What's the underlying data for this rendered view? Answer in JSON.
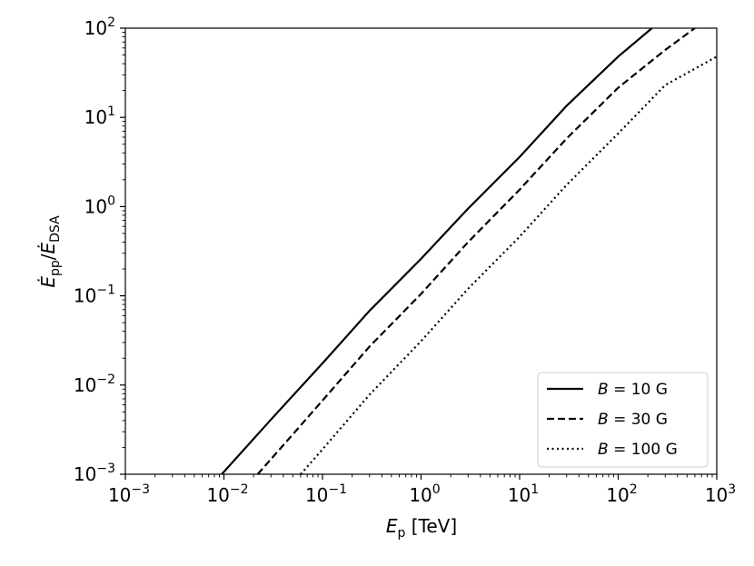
{
  "chart_data": {
    "type": "line",
    "x_scale": "log",
    "y_scale": "log",
    "xlim": [
      0.001,
      1000
    ],
    "ylim": [
      0.001,
      100
    ],
    "grid": false,
    "legend_position": "bottom-right",
    "x_ticks": [
      {
        "value": 0.001,
        "base": "10",
        "exp": "−3"
      },
      {
        "value": 0.01,
        "base": "10",
        "exp": "−2"
      },
      {
        "value": 0.1,
        "base": "10",
        "exp": "−1"
      },
      {
        "value": 1,
        "base": "10",
        "exp": "0"
      },
      {
        "value": 10,
        "base": "10",
        "exp": "1"
      },
      {
        "value": 100,
        "base": "10",
        "exp": "2"
      },
      {
        "value": 1000,
        "base": "10",
        "exp": "3"
      }
    ],
    "y_ticks": [
      {
        "value": 0.001,
        "base": "10",
        "exp": "−3"
      },
      {
        "value": 0.01,
        "base": "10",
        "exp": "−2"
      },
      {
        "value": 0.1,
        "base": "10",
        "exp": "−1"
      },
      {
        "value": 1,
        "base": "10",
        "exp": "0"
      },
      {
        "value": 10,
        "base": "10",
        "exp": "1"
      },
      {
        "value": 100,
        "base": "10",
        "exp": "2"
      }
    ],
    "xlabel": {
      "main": "E",
      "sub": "p",
      "unit": " [TeV]"
    },
    "ylabel": {
      "num_main": "Ė",
      "num_sub": "pp",
      "slash": "/",
      "den_main": "Ė",
      "den_sub": "DSA"
    },
    "series": [
      {
        "name": "B = 10 G",
        "label_var": "B",
        "label_rest": " = 10 G",
        "style": "solid",
        "x": [
          0.0095,
          0.03,
          0.1,
          0.3,
          1,
          3,
          10,
          30,
          100,
          220
        ],
        "y": [
          0.001,
          0.0041,
          0.0175,
          0.068,
          0.26,
          0.95,
          3.6,
          13.5,
          48,
          100
        ]
      },
      {
        "name": "B = 30 G",
        "label_var": "B",
        "label_rest": " = 30 G",
        "style": "dashed",
        "x": [
          0.022,
          0.05,
          0.1,
          0.3,
          1,
          3,
          10,
          30,
          100,
          300,
          600
        ],
        "y": [
          0.001,
          0.0028,
          0.0067,
          0.027,
          0.105,
          0.4,
          1.55,
          5.8,
          21.5,
          57,
          100
        ]
      },
      {
        "name": "B = 100 G",
        "label_var": "B",
        "label_rest": " = 100 G",
        "style": "dotted",
        "x": [
          0.06,
          0.1,
          0.3,
          1,
          3,
          10,
          30,
          100,
          300,
          1000
        ],
        "y": [
          0.001,
          0.0019,
          0.0078,
          0.031,
          0.12,
          0.46,
          1.75,
          6.6,
          23,
          48
        ]
      }
    ]
  }
}
